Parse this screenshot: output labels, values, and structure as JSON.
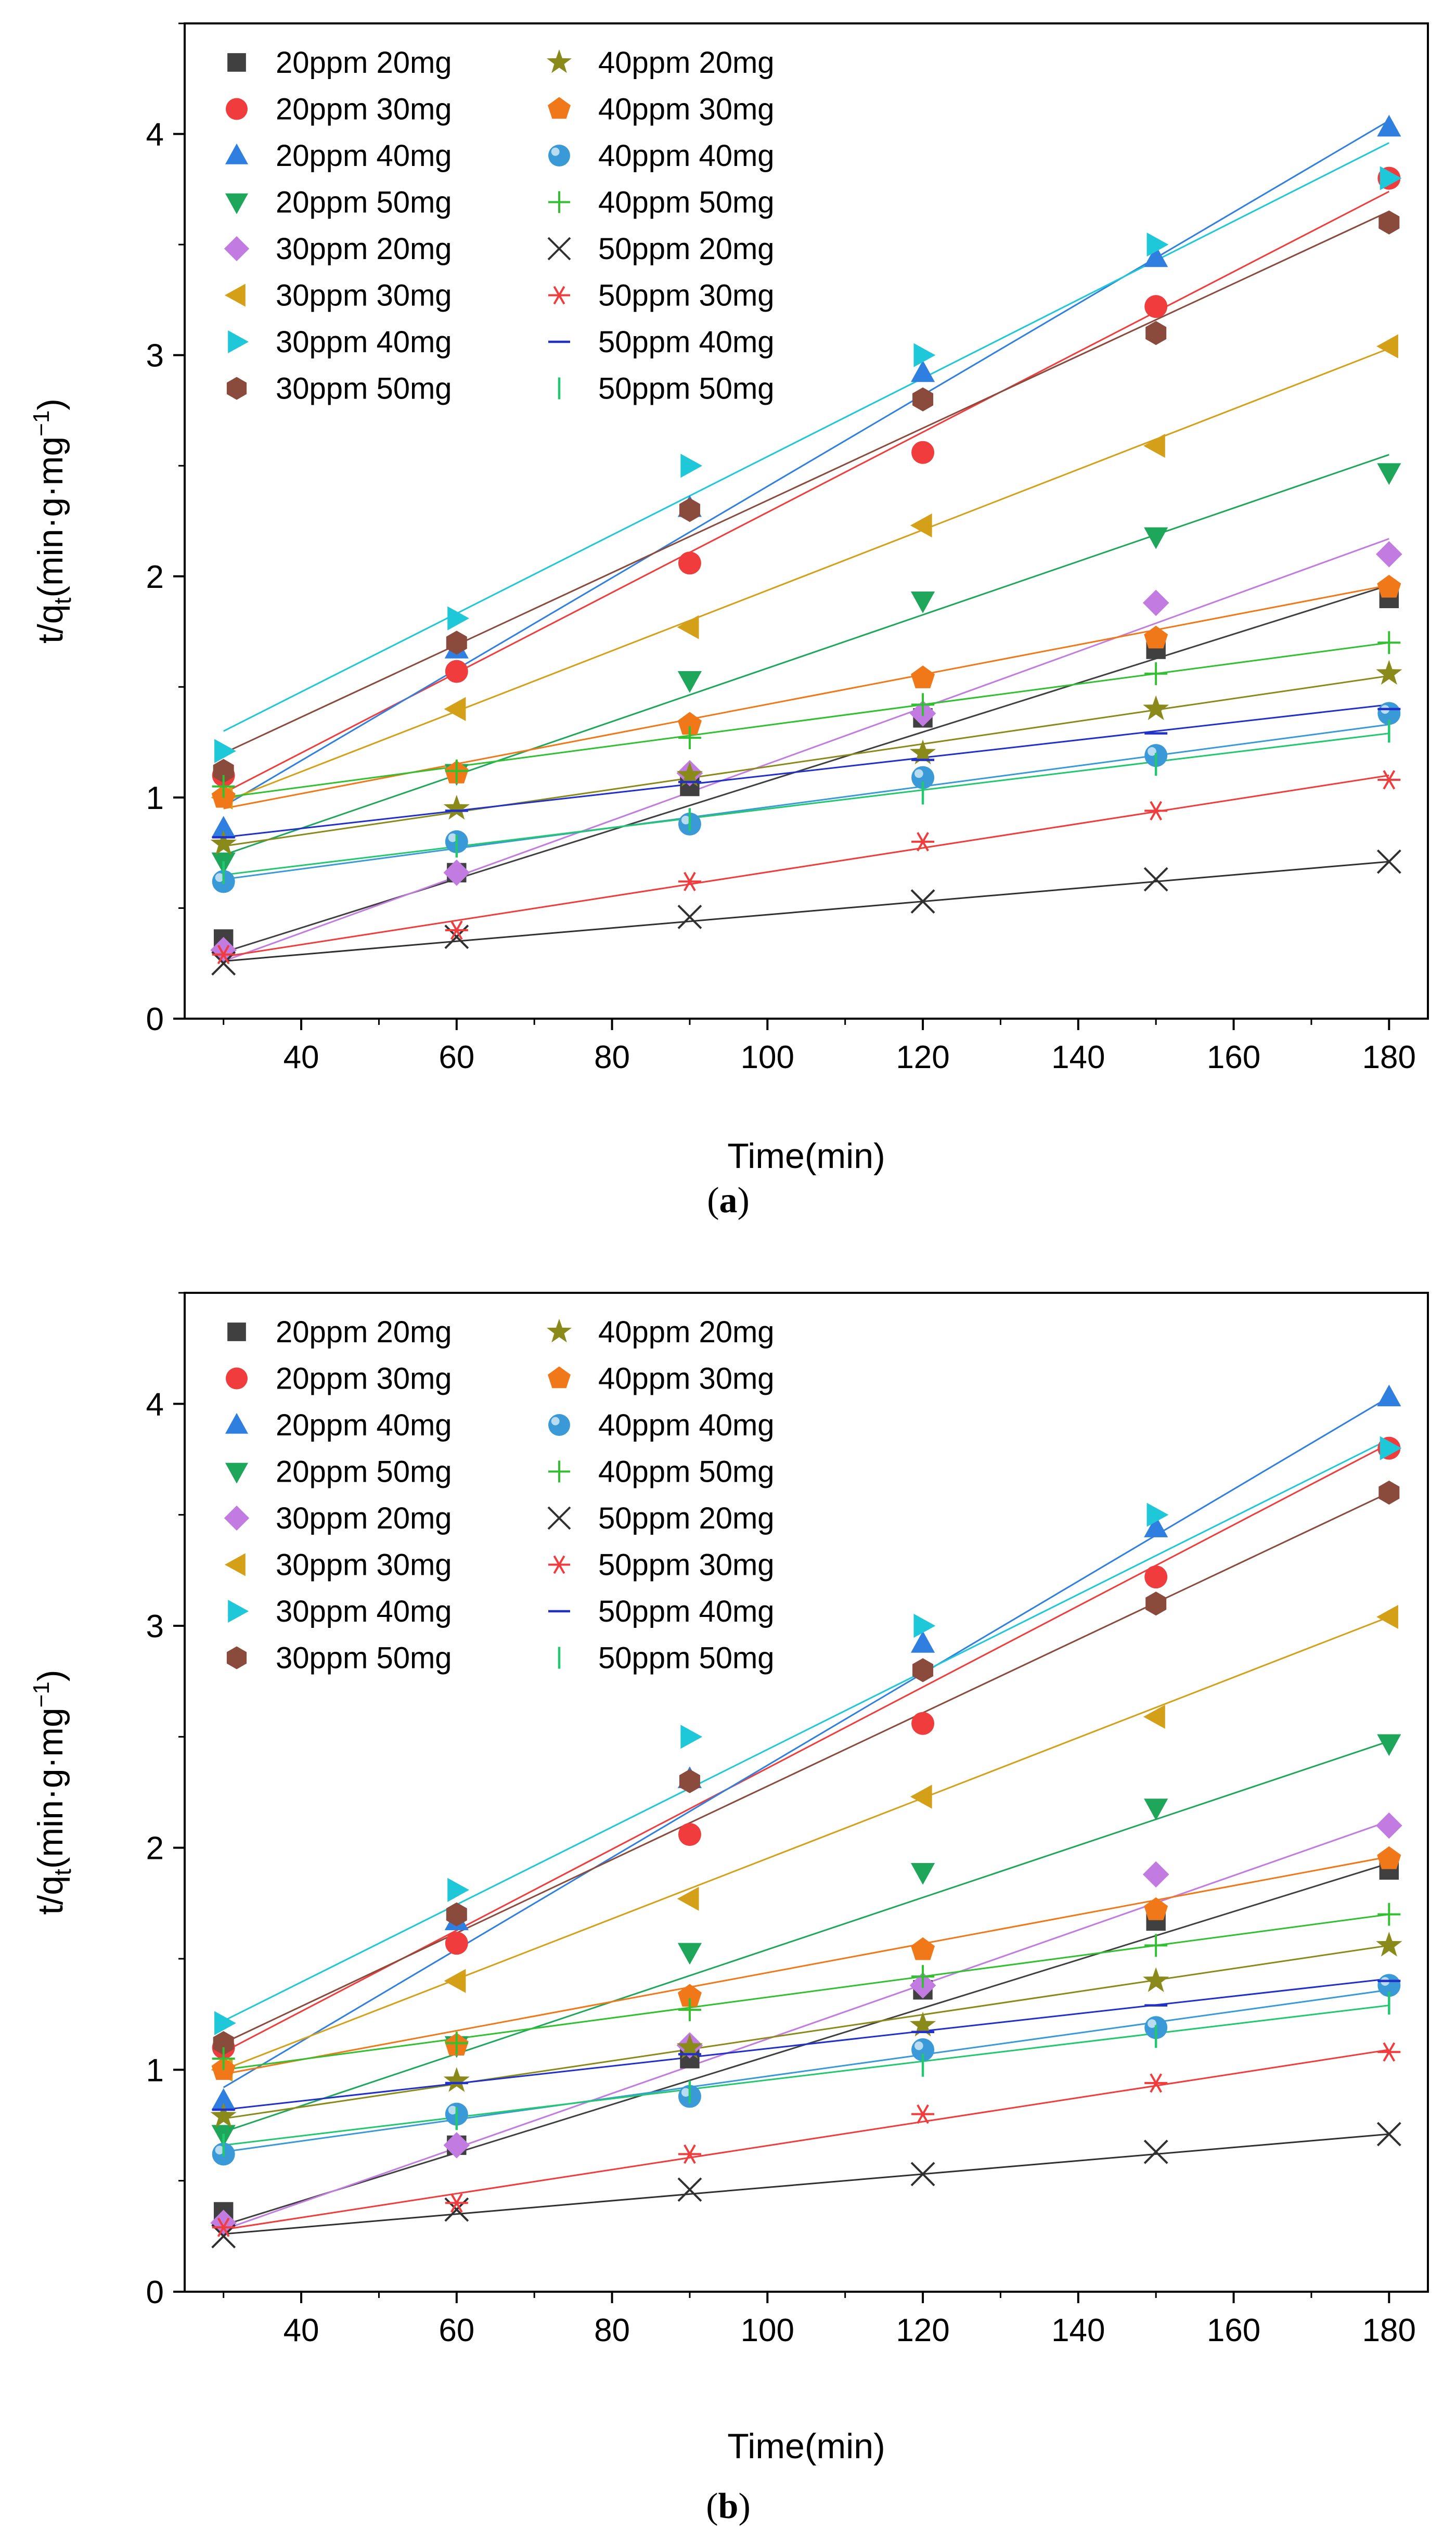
{
  "figure": {
    "panels": [
      "(a)",
      "(b)"
    ]
  },
  "chart_data": [
    {
      "type": "scatter",
      "panel_label": "(a)",
      "title": "",
      "xlabel": "Time(min)",
      "ylabel_base": "t/q",
      "ylabel_sub": "t",
      "ylabel_unit": "(min·g·mg",
      "ylabel_sup": "−1",
      "ylabel_close": ")",
      "xlim": [
        25,
        185
      ],
      "ylim": [
        0,
        4.5
      ],
      "xticks": [
        40,
        60,
        80,
        100,
        120,
        140,
        160,
        180
      ],
      "yticks": [
        0,
        1,
        2,
        3,
        4
      ],
      "legend": "top-left, two columns",
      "x": [
        30,
        60,
        90,
        120,
        150,
        180
      ],
      "series": [
        {
          "name": "20ppm 20mg",
          "marker": "square",
          "color": "#404040",
          "values": [
            0.36,
            0.66,
            1.05,
            1.36,
            1.67,
            1.9
          ],
          "fit": [
            0.3,
            1.96
          ]
        },
        {
          "name": "20ppm 30mg",
          "marker": "circle",
          "color": "#f03c3c",
          "values": [
            1.1,
            1.57,
            2.06,
            2.56,
            3.22,
            3.8
          ],
          "fit": [
            1.02,
            3.74
          ]
        },
        {
          "name": "20ppm 40mg",
          "marker": "triangle-up",
          "color": "#2f7fe0",
          "values": [
            0.86,
            1.67,
            2.31,
            2.92,
            3.44,
            4.03
          ],
          "fit": [
            0.96,
            4.06
          ]
        },
        {
          "name": "20ppm 50mg",
          "marker": "triangle-down",
          "color": "#1ea75a",
          "values": [
            0.71,
            1.11,
            1.53,
            1.89,
            2.18,
            2.47
          ],
          "fit": [
            0.74,
            2.55
          ]
        },
        {
          "name": "30ppm 20mg",
          "marker": "diamond",
          "color": "#c27be0",
          "values": [
            0.31,
            0.66,
            1.11,
            1.38,
            1.88,
            2.1
          ],
          "fit": [
            0.26,
            2.17
          ]
        },
        {
          "name": "30ppm 30mg",
          "marker": "triangle-left",
          "color": "#d4a017",
          "values": [
            1.0,
            1.4,
            1.77,
            2.23,
            2.59,
            3.04
          ],
          "fit": [
            0.98,
            3.03
          ]
        },
        {
          "name": "30ppm 40mg",
          "marker": "triangle-right",
          "color": "#1ec8d8",
          "values": [
            1.21,
            1.81,
            2.5,
            3.0,
            3.5,
            3.8
          ],
          "fit": [
            1.3,
            3.96
          ]
        },
        {
          "name": "30ppm 50mg",
          "marker": "hexagon",
          "color": "#8a4a3c",
          "values": [
            1.12,
            1.7,
            2.3,
            2.8,
            3.1,
            3.6
          ],
          "fit": [
            1.2,
            3.65
          ]
        },
        {
          "name": "40ppm 20mg",
          "marker": "star",
          "color": "#8a8a1a",
          "values": [
            0.79,
            0.95,
            1.1,
            1.2,
            1.4,
            1.56
          ],
          "fit": [
            0.78,
            1.55
          ]
        },
        {
          "name": "40ppm 30mg",
          "marker": "pentagon",
          "color": "#f07818",
          "values": [
            1.0,
            1.11,
            1.33,
            1.54,
            1.72,
            1.95
          ],
          "fit": [
            0.95,
            1.96
          ]
        },
        {
          "name": "40ppm 40mg",
          "marker": "sphere",
          "color": "#3a9ad8",
          "values": [
            0.62,
            0.8,
            0.88,
            1.09,
            1.19,
            1.38
          ],
          "fit": [
            0.63,
            1.33
          ]
        },
        {
          "name": "40ppm 50mg",
          "marker": "plus",
          "color": "#30c030",
          "values": [
            1.05,
            1.12,
            1.27,
            1.42,
            1.56,
            1.7
          ],
          "fit": [
            1.0,
            1.7
          ]
        },
        {
          "name": "50ppm 20mg",
          "marker": "x",
          "color": "#303030",
          "values": [
            0.25,
            0.37,
            0.46,
            0.53,
            0.63,
            0.71
          ],
          "fit": [
            0.26,
            0.71
          ]
        },
        {
          "name": "50ppm 30mg",
          "marker": "asterisk",
          "color": "#f03c3c",
          "values": [
            0.29,
            0.4,
            0.62,
            0.8,
            0.94,
            1.08
          ],
          "fit": [
            0.28,
            1.1
          ]
        },
        {
          "name": "50ppm 40mg",
          "marker": "hline",
          "color": "#2030c8",
          "values": [
            0.82,
            0.94,
            1.07,
            1.17,
            1.29,
            1.4
          ],
          "fit": [
            0.82,
            1.42
          ]
        },
        {
          "name": "50ppm 50mg",
          "marker": "vline",
          "color": "#22c870",
          "values": [
            0.66,
            0.78,
            0.9,
            1.02,
            1.15,
            1.3
          ],
          "fit": [
            0.65,
            1.29
          ]
        }
      ]
    },
    {
      "type": "scatter",
      "panel_label": "(b)",
      "title": "",
      "xlabel": "Time(min)",
      "ylabel_base": "t/q",
      "ylabel_sub": "t",
      "ylabel_unit": "(min·g·mg",
      "ylabel_sup": "−1",
      "ylabel_close": ")",
      "xlim": [
        25,
        185
      ],
      "ylim": [
        0,
        4.5
      ],
      "xticks": [
        40,
        60,
        80,
        100,
        120,
        140,
        160,
        180
      ],
      "yticks": [
        0,
        1,
        2,
        3,
        4
      ],
      "legend": "top-left, two columns",
      "x": [
        30,
        60,
        90,
        120,
        150,
        180
      ],
      "series": [
        {
          "name": "20ppm 20mg",
          "marker": "square",
          "color": "#404040",
          "values": [
            0.36,
            0.66,
            1.05,
            1.36,
            1.67,
            1.9
          ],
          "fit": [
            0.3,
            1.93
          ]
        },
        {
          "name": "20ppm 30mg",
          "marker": "circle",
          "color": "#f03c3c",
          "values": [
            1.1,
            1.57,
            2.06,
            2.56,
            3.22,
            3.8
          ],
          "fit": [
            1.08,
            3.82
          ]
        },
        {
          "name": "20ppm 40mg",
          "marker": "triangle-up",
          "color": "#2f7fe0",
          "values": [
            0.86,
            1.67,
            2.31,
            2.92,
            3.44,
            4.03
          ],
          "fit": [
            0.92,
            4.03
          ]
        },
        {
          "name": "20ppm 50mg",
          "marker": "triangle-down",
          "color": "#1ea75a",
          "values": [
            0.71,
            1.11,
            1.53,
            1.89,
            2.18,
            2.47
          ],
          "fit": [
            0.72,
            2.48
          ]
        },
        {
          "name": "30ppm 20mg",
          "marker": "diamond",
          "color": "#c27be0",
          "values": [
            0.31,
            0.66,
            1.11,
            1.38,
            1.88,
            2.1
          ],
          "fit": [
            0.28,
            2.12
          ]
        },
        {
          "name": "30ppm 30mg",
          "marker": "triangle-left",
          "color": "#d4a017",
          "values": [
            1.0,
            1.4,
            1.77,
            2.23,
            2.59,
            3.04
          ],
          "fit": [
            1.0,
            3.04
          ]
        },
        {
          "name": "30ppm 40mg",
          "marker": "triangle-right",
          "color": "#1ec8d8",
          "values": [
            1.21,
            1.81,
            2.5,
            3.0,
            3.5,
            3.8
          ],
          "fit": [
            1.22,
            3.84
          ]
        },
        {
          "name": "30ppm 50mg",
          "marker": "hexagon",
          "color": "#8a4a3c",
          "values": [
            1.12,
            1.7,
            2.3,
            2.8,
            3.1,
            3.6
          ],
          "fit": [
            1.12,
            3.6
          ]
        },
        {
          "name": "40ppm 20mg",
          "marker": "star",
          "color": "#8a8a1a",
          "values": [
            0.79,
            0.95,
            1.1,
            1.2,
            1.4,
            1.56
          ],
          "fit": [
            0.78,
            1.56
          ]
        },
        {
          "name": "40ppm 30mg",
          "marker": "pentagon",
          "color": "#f07818",
          "values": [
            1.0,
            1.11,
            1.33,
            1.54,
            1.72,
            1.95
          ],
          "fit": [
            0.98,
            1.96
          ]
        },
        {
          "name": "40ppm 40mg",
          "marker": "sphere",
          "color": "#3a9ad8",
          "values": [
            0.62,
            0.8,
            0.88,
            1.09,
            1.19,
            1.38
          ],
          "fit": [
            0.63,
            1.36
          ]
        },
        {
          "name": "40ppm 50mg",
          "marker": "plus",
          "color": "#30c030",
          "values": [
            1.05,
            1.12,
            1.27,
            1.42,
            1.56,
            1.7
          ],
          "fit": [
            1.0,
            1.7
          ]
        },
        {
          "name": "50ppm 20mg",
          "marker": "x",
          "color": "#303030",
          "values": [
            0.25,
            0.37,
            0.46,
            0.53,
            0.63,
            0.71
          ],
          "fit": [
            0.26,
            0.71
          ]
        },
        {
          "name": "50ppm 30mg",
          "marker": "asterisk",
          "color": "#f03c3c",
          "values": [
            0.29,
            0.4,
            0.62,
            0.8,
            0.94,
            1.08
          ],
          "fit": [
            0.28,
            1.09
          ]
        },
        {
          "name": "50ppm 40mg",
          "marker": "hline",
          "color": "#2030c8",
          "values": [
            0.82,
            0.94,
            1.07,
            1.17,
            1.29,
            1.4
          ],
          "fit": [
            0.82,
            1.41
          ]
        },
        {
          "name": "50ppm 50mg",
          "marker": "vline",
          "color": "#22c870",
          "values": [
            0.66,
            0.78,
            0.9,
            1.02,
            1.15,
            1.3
          ],
          "fit": [
            0.66,
            1.29
          ]
        }
      ]
    }
  ]
}
